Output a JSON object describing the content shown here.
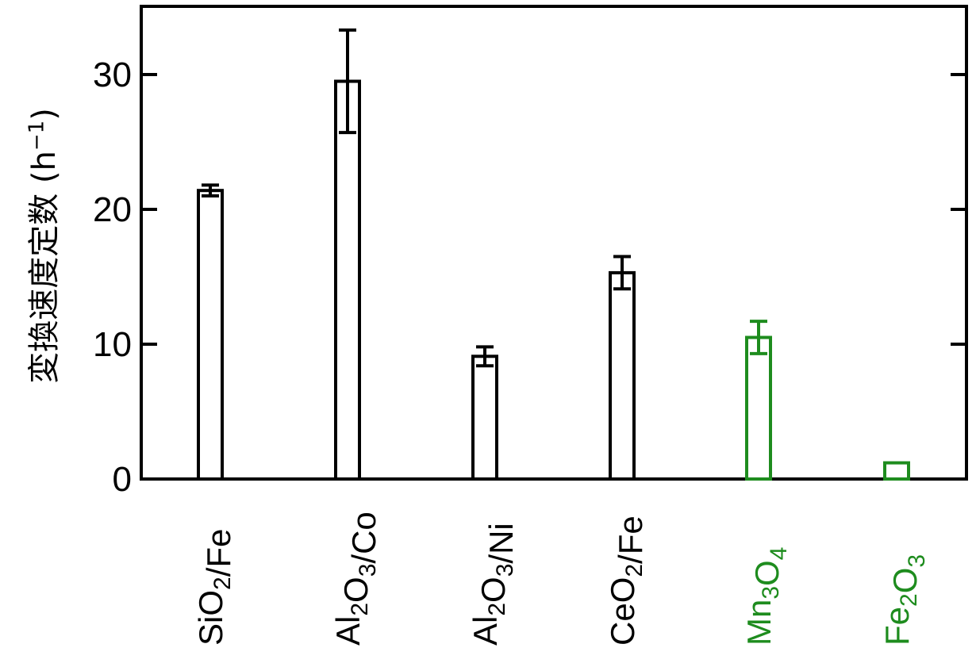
{
  "chart_data": {
    "type": "bar",
    "ylabel": {
      "main": "変換速度定数 (h",
      "sup": "−1",
      "close": ")"
    },
    "ylim": [
      0,
      35
    ],
    "yticks": [
      0,
      10,
      20,
      30
    ],
    "grid": false,
    "categories": [
      {
        "id": "sio2-fe",
        "parts": [
          [
            "Si",
            ""
          ],
          [
            "O",
            "2"
          ],
          [
            "/Fe",
            ""
          ]
        ]
      },
      {
        "id": "al2o3-co",
        "parts": [
          [
            "Al",
            "2"
          ],
          [
            "O",
            "3"
          ],
          [
            "/Co",
            ""
          ]
        ]
      },
      {
        "id": "al2o3-ni",
        "parts": [
          [
            "Al",
            "2"
          ],
          [
            "O",
            "3"
          ],
          [
            "/Ni",
            ""
          ]
        ]
      },
      {
        "id": "ceo2-fe",
        "parts": [
          [
            "Ce",
            ""
          ],
          [
            "O",
            "2"
          ],
          [
            "/Fe",
            ""
          ]
        ]
      },
      {
        "id": "mn3o4",
        "parts": [
          [
            "Mn",
            "3"
          ],
          [
            "O",
            "4"
          ]
        ]
      },
      {
        "id": "fe2o3",
        "parts": [
          [
            "Fe",
            "2"
          ],
          [
            "O",
            "3"
          ]
        ]
      }
    ],
    "values": [
      21.4,
      29.5,
      9.1,
      15.3,
      10.5,
      1.2
    ],
    "errors": [
      0.4,
      3.8,
      0.7,
      1.2,
      1.2,
      null
    ],
    "colors": [
      "#000000",
      "#000000",
      "#000000",
      "#000000",
      "#1e8c1e",
      "#1e8c1e"
    ]
  }
}
